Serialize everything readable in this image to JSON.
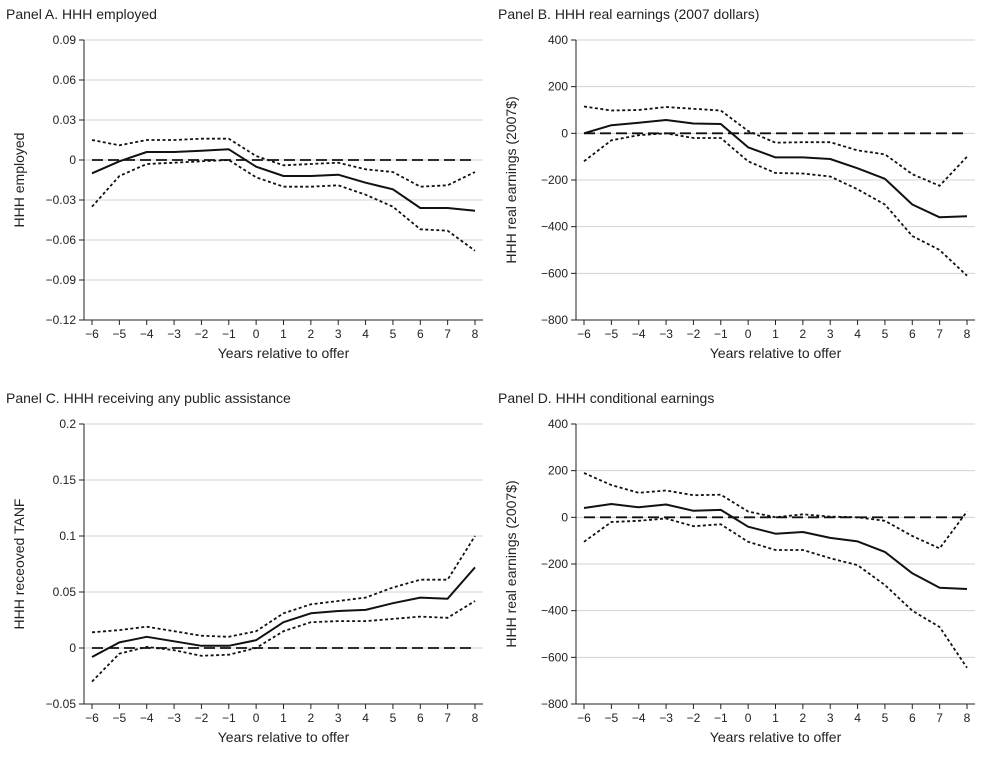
{
  "chart_data": [
    {
      "type": "line",
      "title": "Panel A. HHH employed",
      "xlabel": "Years relative to offer",
      "ylabel": "HHH employed",
      "x": [
        -6,
        -5,
        -4,
        -3,
        -2,
        -1,
        0,
        1,
        2,
        3,
        4,
        5,
        6,
        7,
        8
      ],
      "xlim": [
        -6,
        8
      ],
      "ylim": [
        -0.12,
        0.09
      ],
      "yticks": [
        0.09,
        0.06,
        0.03,
        0,
        -0.03,
        -0.06,
        -0.09,
        -0.12
      ],
      "ytick_labels": [
        "0.09",
        "0.06",
        "0.03",
        "0",
        "−0.03",
        "−0.06",
        "−0.09",
        "−0.12"
      ],
      "grid": true,
      "series": [
        {
          "style": "solid",
          "values": [
            -0.01,
            -0.001,
            0.006,
            0.006,
            0.007,
            0.008,
            -0.005,
            -0.012,
            -0.012,
            -0.011,
            -0.017,
            -0.022,
            -0.036,
            -0.036,
            -0.038
          ]
        },
        {
          "style": "dotted",
          "values": [
            0.015,
            0.011,
            0.015,
            0.015,
            0.016,
            0.016,
            0.003,
            -0.004,
            -0.003,
            -0.002,
            -0.007,
            -0.009,
            -0.02,
            -0.019,
            -0.009
          ]
        },
        {
          "style": "dotted",
          "values": [
            -0.035,
            -0.012,
            -0.003,
            -0.002,
            -0.001,
            0.0,
            -0.013,
            -0.02,
            -0.02,
            -0.019,
            -0.026,
            -0.035,
            -0.052,
            -0.053,
            -0.068
          ]
        },
        {
          "style": "dashed",
          "values": [
            0,
            0,
            0,
            0,
            0,
            0,
            0,
            0,
            0,
            0,
            0,
            0,
            0,
            0,
            0
          ]
        }
      ]
    },
    {
      "type": "line",
      "title": "Panel B. HHH real earnings (2007 dollars)",
      "xlabel": "Years relative to offer",
      "ylabel": "HHH real earnings (2007$)",
      "x": [
        -6,
        -5,
        -4,
        -3,
        -2,
        -1,
        0,
        1,
        2,
        3,
        4,
        5,
        6,
        7,
        8
      ],
      "xlim": [
        -6,
        8
      ],
      "ylim": [
        -800,
        400
      ],
      "yticks": [
        400,
        200,
        0,
        -200,
        -400,
        -600,
        -800
      ],
      "ytick_labels": [
        "400",
        "200",
        "0",
        "−200",
        "−400",
        "−600",
        "−800"
      ],
      "grid": true,
      "series": [
        {
          "style": "solid",
          "values": [
            0,
            35,
            45,
            57,
            42,
            40,
            -60,
            -103,
            -103,
            -110,
            -150,
            -195,
            -305,
            -360,
            -355
          ]
        },
        {
          "style": "dotted",
          "values": [
            115,
            98,
            100,
            113,
            105,
            98,
            10,
            -40,
            -38,
            -38,
            -73,
            -90,
            -175,
            -225,
            -100
          ]
        },
        {
          "style": "dotted",
          "values": [
            -120,
            -30,
            -8,
            0,
            -20,
            -20,
            -120,
            -170,
            -172,
            -185,
            -240,
            -305,
            -440,
            -500,
            -610
          ]
        },
        {
          "style": "dashed",
          "values": [
            0,
            0,
            0,
            0,
            0,
            0,
            0,
            0,
            0,
            0,
            0,
            0,
            0,
            0,
            0
          ]
        }
      ]
    },
    {
      "type": "line",
      "title": "Panel C. HHH receiving any public assistance",
      "xlabel": "Years relative to offer",
      "ylabel": "HHH receoved TANF",
      "x": [
        -6,
        -5,
        -4,
        -3,
        -2,
        -1,
        0,
        1,
        2,
        3,
        4,
        5,
        6,
        7,
        8
      ],
      "xlim": [
        -6,
        8
      ],
      "ylim": [
        -0.05,
        0.2
      ],
      "yticks": [
        0.2,
        0.15,
        0.1,
        0.05,
        0,
        -0.05
      ],
      "ytick_labels": [
        "0.2",
        "0.15",
        "0.1",
        "0.05",
        "0",
        "−0.05"
      ],
      "grid": true,
      "series": [
        {
          "style": "solid",
          "values": [
            -0.008,
            0.005,
            0.01,
            0.006,
            0.002,
            0.002,
            0.007,
            0.023,
            0.031,
            0.033,
            0.034,
            0.04,
            0.045,
            0.044,
            0.072
          ]
        },
        {
          "style": "dotted",
          "values": [
            0.014,
            0.016,
            0.019,
            0.015,
            0.011,
            0.01,
            0.015,
            0.031,
            0.039,
            0.042,
            0.045,
            0.054,
            0.061,
            0.061,
            0.1
          ]
        },
        {
          "style": "dotted",
          "values": [
            -0.03,
            -0.005,
            0.001,
            -0.002,
            -0.007,
            -0.006,
            0.0,
            0.015,
            0.023,
            0.024,
            0.024,
            0.026,
            0.028,
            0.027,
            0.042
          ]
        },
        {
          "style": "dashed",
          "values": [
            0,
            0,
            0,
            0,
            0,
            0,
            0,
            0,
            0,
            0,
            0,
            0,
            0,
            0,
            0
          ]
        }
      ]
    },
    {
      "type": "line",
      "title": "Panel D. HHH conditional earnings",
      "xlabel": "Years relative to offer",
      "ylabel": "HHH real earnings (2007$)",
      "x": [
        -6,
        -5,
        -4,
        -3,
        -2,
        -1,
        0,
        1,
        2,
        3,
        4,
        5,
        6,
        7,
        8
      ],
      "xlim": [
        -6,
        8
      ],
      "ylim": [
        -800,
        400
      ],
      "yticks": [
        400,
        200,
        0,
        -200,
        -400,
        -600,
        -800
      ],
      "ytick_labels": [
        "400",
        "200",
        "0",
        "−200",
        "−400",
        "−600",
        "−800"
      ],
      "grid": true,
      "series": [
        {
          "style": "solid",
          "values": [
            40,
            57,
            43,
            55,
            28,
            32,
            -40,
            -70,
            -63,
            -88,
            -103,
            -148,
            -240,
            -302,
            -307
          ]
        },
        {
          "style": "dotted",
          "values": [
            190,
            138,
            105,
            115,
            95,
            97,
            25,
            0,
            13,
            3,
            0,
            -15,
            -80,
            -133,
            25
          ]
        },
        {
          "style": "dotted",
          "values": [
            -105,
            -20,
            -15,
            -5,
            -38,
            -30,
            -105,
            -140,
            -140,
            -175,
            -205,
            -290,
            -400,
            -470,
            -645
          ]
        },
        {
          "style": "dashed",
          "values": [
            0,
            0,
            0,
            0,
            0,
            0,
            0,
            0,
            0,
            0,
            0,
            0,
            0,
            0,
            0
          ]
        }
      ]
    }
  ]
}
